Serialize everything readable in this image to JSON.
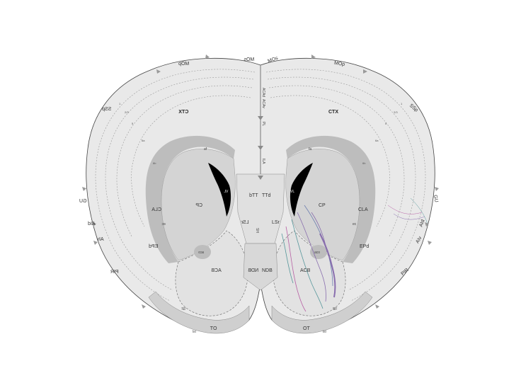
{
  "colors": {
    "brain_fill": "#e9e9e9",
    "cortex_outline": "#444444",
    "striatum_fill": "#d4d4d4",
    "cc_fill": "#bdbdbd",
    "ventricle": "#000000",
    "marker": "#9a9a9a",
    "label_fibers": [
      "#7a5aa6",
      "#3f8a8f",
      "#b04a9a",
      "#5a6fa8"
    ]
  },
  "left": {
    "ctx": "CTX",
    "mop": "MOp",
    "mos": "MOs",
    "ssp": "SSp",
    "gu": "GU",
    "aid": "AId",
    "aiv": "AIv",
    "pir": "PIR",
    "cla": "CLA",
    "epd": "EPd",
    "cp": "CP",
    "vl": "VL",
    "acb": "ACB",
    "aco": "aco",
    "ls": "LSr",
    "ttd": "TTd",
    "ndb": "NDB",
    "ot": "OT",
    "isl": "isl",
    "fa": "fa",
    "sf": "SF",
    "ec": "ec"
  },
  "right": {
    "ctx": "CTX",
    "mop": "MOp",
    "mos": "MOs",
    "ssp": "SSp",
    "gu": "GU",
    "aid": "AId",
    "aiv": "AIv",
    "pir": "PIR",
    "cla": "CLA",
    "epd": "EPd",
    "cp": "CP",
    "vl": "VL",
    "acb": "ACB",
    "aco": "aco",
    "ls": "LSr",
    "ttd": "TTd",
    "ndb": "NDB",
    "ot": "OT",
    "isl": "isl",
    "fa": "fa",
    "sf": "SF",
    "ec": "ec"
  },
  "midline": {
    "acad": "ACAd",
    "acav": "ACAv",
    "pl": "PL",
    "ila": "ILA",
    "sh": "SH"
  },
  "layer_numbers": [
    "1",
    "2/3",
    "5",
    "6a",
    "6b"
  ]
}
